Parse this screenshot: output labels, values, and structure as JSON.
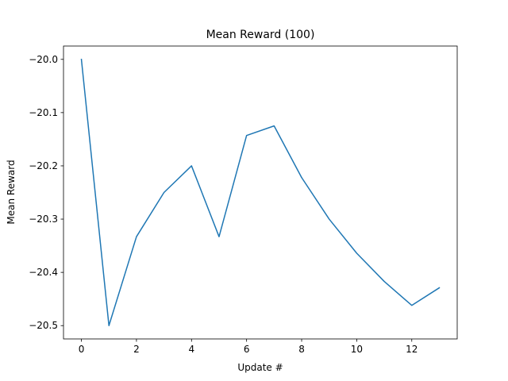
{
  "chart_data": {
    "type": "line",
    "title": "Mean Reward (100)",
    "xlabel": "Update #",
    "ylabel": "Mean Reward",
    "xlim": [
      -0.65,
      13.65
    ],
    "ylim": [
      -20.525,
      -19.975
    ],
    "grid": false,
    "color": "#1f77b4",
    "x_ticks": [
      0,
      2,
      4,
      6,
      8,
      10,
      12
    ],
    "x_tick_labels": [
      "0",
      "2",
      "4",
      "6",
      "8",
      "10",
      "12"
    ],
    "y_ticks": [
      -20.0,
      -20.1,
      -20.2,
      -20.3,
      -20.4,
      -20.5
    ],
    "y_tick_labels": [
      "−20.0",
      "−20.1",
      "−20.2",
      "−20.3",
      "−20.4",
      "−20.5"
    ],
    "x": [
      0,
      1,
      2,
      3,
      4,
      5,
      6,
      7,
      8,
      9,
      10,
      11,
      12,
      13
    ],
    "y": [
      -20.0,
      -20.5,
      -20.333,
      -20.25,
      -20.2,
      -20.333,
      -20.143,
      -20.125,
      -20.222,
      -20.3,
      -20.364,
      -20.417,
      -20.462,
      -20.429
    ]
  }
}
